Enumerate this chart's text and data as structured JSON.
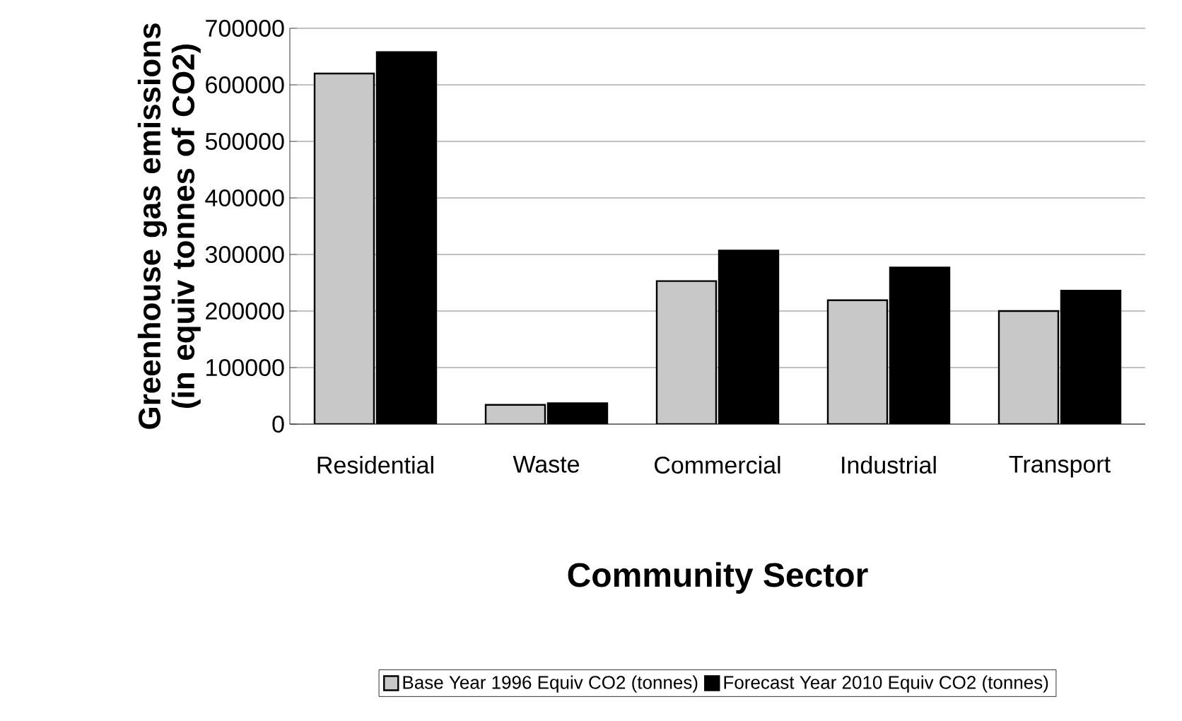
{
  "chart_data": {
    "type": "bar",
    "xlabel": "Community Sector",
    "ylabel": "Greenhouse gas emissions (in equiv tonnes of CO2)",
    "categories": [
      "Residential",
      "Waste",
      "Commercial",
      "Industrial",
      "Transport"
    ],
    "series": [
      {
        "name": "Base Year 1996 Equiv CO2 (tonnes)",
        "color": "#c8c8c8",
        "values": [
          620000,
          34000,
          253000,
          219000,
          200000
        ]
      },
      {
        "name": "Forecast Year 2010 Equiv CO2 (tonnes)",
        "color": "#000000",
        "values": [
          658000,
          37000,
          307000,
          277000,
          236000
        ]
      }
    ],
    "ylim": [
      0,
      700000
    ],
    "yticks": [
      0,
      100000,
      200000,
      300000,
      400000,
      500000,
      600000,
      700000
    ],
    "grid": "y",
    "legend": "bottom"
  }
}
